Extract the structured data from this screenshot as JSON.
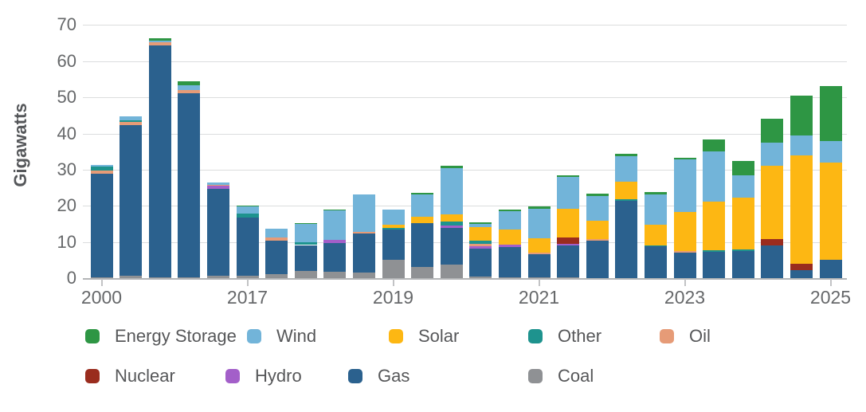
{
  "chart_data": {
    "type": "bar",
    "stacked": true,
    "title": "",
    "xlabel": "",
    "ylabel": "Gigawatts",
    "ylim": [
      0,
      70
    ],
    "y_ticks": [
      0,
      10,
      20,
      30,
      40,
      50,
      60,
      70
    ],
    "grid": "horizontal",
    "legend_position": "bottom",
    "series_bottom_to_top": [
      "coal",
      "gas",
      "hydro",
      "nuclear",
      "oil",
      "other",
      "solar",
      "wind",
      "storage"
    ],
    "series_labels": {
      "storage": "Energy Storage",
      "wind": "Wind",
      "solar": "Solar",
      "other": "Other",
      "oil": "Oil",
      "nuclear": "Nuclear",
      "hydro": "Hydro",
      "gas": "Gas",
      "coal": "Coal"
    },
    "colors": {
      "storage": "#2E9644",
      "wind": "#72B4D9",
      "solar": "#FDB713",
      "other": "#1E938E",
      "oil": "#E69B77",
      "nuclear": "#9A2C1E",
      "hydro": "#A35FC9",
      "gas": "#2B618E",
      "coal": "#8F9194"
    },
    "legend_rows": [
      [
        "storage",
        "wind",
        "solar",
        "other",
        "oil"
      ],
      [
        "nuclear",
        "hydro",
        "gas",
        "coal"
      ]
    ],
    "x_tick_labels": [
      {
        "label": "2000",
        "bar_index": 0
      },
      {
        "label": "2017",
        "bar_index": 5
      },
      {
        "label": "2019",
        "bar_index": 10
      },
      {
        "label": "2021",
        "bar_index": 15
      },
      {
        "label": "2023",
        "bar_index": 20
      },
      {
        "label": "2025",
        "bar_index": 25
      }
    ],
    "bars": [
      {
        "coal": 0.3,
        "gas": 28.5,
        "oil": 1.0,
        "other": 1.1,
        "wind": 0.4
      },
      {
        "coal": 0.7,
        "gas": 41.7,
        "oil": 0.9,
        "other": 0.3,
        "wind": 1.2
      },
      {
        "coal": 0.2,
        "gas": 64.2,
        "oil": 0.9,
        "wind": 0.3,
        "storage": 0.8
      },
      {
        "coal": 0.2,
        "gas": 51.0,
        "oil": 0.9,
        "wind": 1.3,
        "storage": 1.1
      },
      {
        "coal": 0.8,
        "gas": 23.9,
        "hydro": 0.9,
        "oil": 0.3,
        "wind": 0.6
      },
      {
        "coal": 0.8,
        "gas": 15.9,
        "other": 1.1,
        "wind": 2.0,
        "storage": 0.2
      },
      {
        "coal": 1.1,
        "gas": 9.4,
        "oil": 0.7,
        "wind": 2.5
      },
      {
        "coal": 2.0,
        "gas": 7.2,
        "other": 0.8,
        "wind": 5.2,
        "storage": 0.1
      },
      {
        "coal": 1.8,
        "gas": 8.0,
        "hydro": 0.9,
        "wind": 8.2,
        "storage": 0.1
      },
      {
        "coal": 1.7,
        "gas": 10.6,
        "oil": 0.6,
        "wind": 10.3
      },
      {
        "coal": 5.2,
        "gas": 8.2,
        "other": 0.5,
        "solar": 0.9,
        "wind": 4.3
      },
      {
        "coal": 3.2,
        "gas": 12.0,
        "solar": 1.8,
        "wind": 6.1,
        "storage": 0.5
      },
      {
        "coal": 3.9,
        "gas": 10.0,
        "hydro": 0.6,
        "other": 1.1,
        "solar": 2.0,
        "wind": 12.9,
        "storage": 0.5
      },
      {
        "coal": 0.4,
        "gas": 7.8,
        "hydro": 0.6,
        "oil": 0.7,
        "other": 1.0,
        "solar": 3.7,
        "wind": 0.8,
        "storage": 0.5
      },
      {
        "coal": 0.2,
        "gas": 8.5,
        "hydro": 0.6,
        "solar": 4.2,
        "wind": 5.0,
        "storage": 0.4
      },
      {
        "coal": 0.3,
        "gas": 6.4,
        "oil": 0.4,
        "solar": 3.9,
        "wind": 8.3,
        "storage": 0.5
      },
      {
        "coal": 0.2,
        "gas": 8.8,
        "hydro": 0.5,
        "nuclear": 1.7,
        "solar": 8.1,
        "wind": 8.7,
        "storage": 0.4
      },
      {
        "gas": 10.4,
        "oil": 0.4,
        "solar": 5.2,
        "wind": 6.7,
        "storage": 0.8
      },
      {
        "gas": 21.5,
        "other": 0.4,
        "solar": 4.7,
        "wind": 7.1,
        "storage": 0.8
      },
      {
        "gas": 8.8,
        "other": 0.3,
        "solar": 5.8,
        "wind": 8.2,
        "storage": 0.8
      },
      {
        "gas": 7.2,
        "oil": 0.4,
        "solar": 10.7,
        "wind": 14.6,
        "storage": 0.5
      },
      {
        "gas": 7.4,
        "other": 0.3,
        "solar": 13.4,
        "wind": 14.0,
        "storage": 3.3
      },
      {
        "gas": 7.5,
        "other": 0.4,
        "solar": 14.3,
        "wind": 6.3,
        "storage": 4.0
      },
      {
        "gas": 9.2,
        "nuclear": 1.7,
        "solar": 20.1,
        "wind": 6.4,
        "storage": 6.6
      },
      {
        "gas": 2.2,
        "nuclear": 1.8,
        "solar": 30.0,
        "wind": 5.5,
        "storage": 11.0
      },
      {
        "gas": 5.2,
        "solar": 26.8,
        "wind": 6.0,
        "storage": 15.1
      }
    ]
  }
}
